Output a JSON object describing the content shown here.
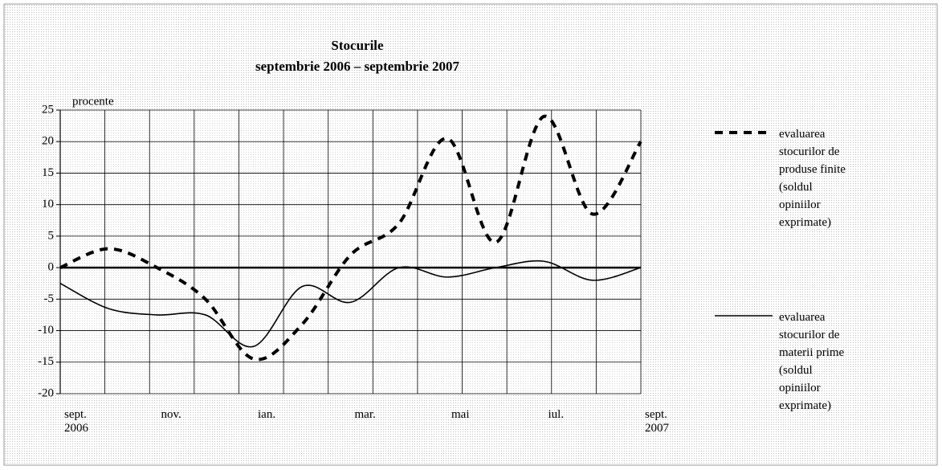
{
  "chart_data": {
    "type": "line",
    "title": "Stocurile",
    "subtitle": "septembrie 2006 – septembrie 2007",
    "y_label": "procente",
    "categories": [
      "sept. 2006",
      null,
      "nov.",
      null,
      "ian.",
      null,
      "mar.",
      null,
      "mai",
      null,
      "iul.",
      null,
      "sept. 2007"
    ],
    "series": [
      {
        "name": "evaluarea stocurilor de produse finite (soldul opiniilor exprimate)",
        "color": "#000000",
        "dash": true,
        "values": [
          0,
          3,
          0,
          -5,
          -14.5,
          -9,
          2,
          7,
          20.5,
          4,
          24,
          8.5,
          20
        ]
      },
      {
        "name": "evaluarea stocurilor de materii prime (soldul opiniilor exprimate)",
        "color": "#000000",
        "dash": false,
        "values": [
          -2.5,
          -6.5,
          -7.5,
          -7.5,
          -12.5,
          -3,
          -5.5,
          0,
          -1.5,
          0,
          1,
          -2,
          0
        ]
      }
    ],
    "ylim": [
      -20,
      25
    ],
    "yticks": [
      -20,
      -15,
      -10,
      -5,
      0,
      5,
      10,
      15,
      20,
      25
    ],
    "grid": true
  }
}
